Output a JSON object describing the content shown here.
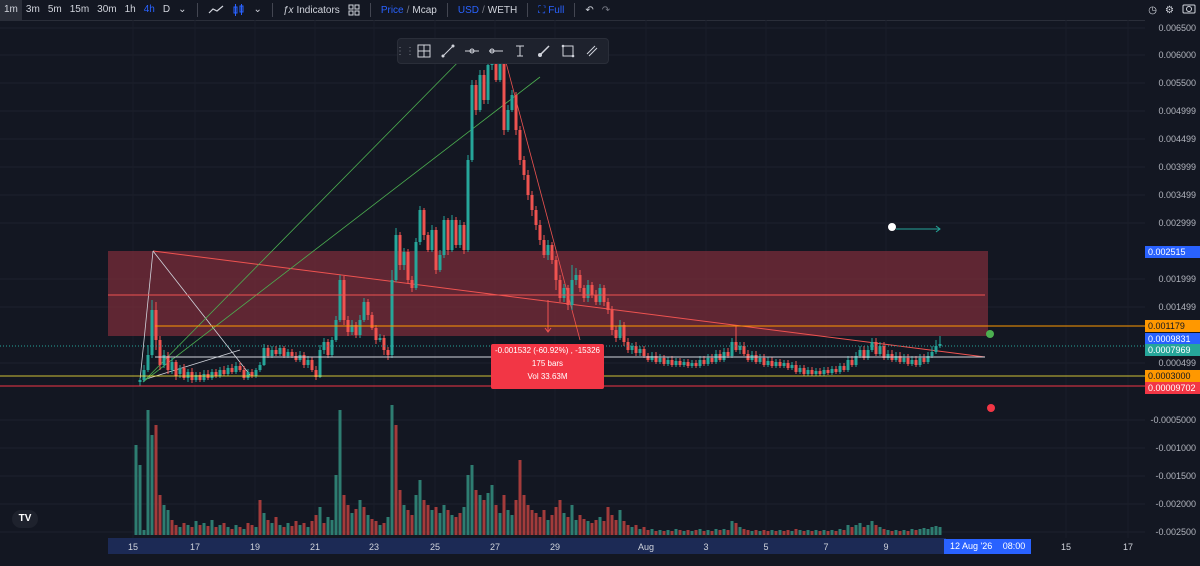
{
  "toolbar": {
    "timeframes": [
      "1m",
      "3m",
      "5m",
      "15m",
      "30m",
      "1h",
      "4h",
      "D"
    ],
    "active_timeframe": "4h",
    "indicators_label": "Indicators",
    "price_label": "Price",
    "mcap_label": "Mcap",
    "slash": "/",
    "currency_label": "USD",
    "pair_label": "WETH",
    "full_label": "Full"
  },
  "price_axis": {
    "labels": [
      "0.006500",
      "0.006000",
      "0.005500",
      "0.004999",
      "0.004499",
      "0.003999",
      "0.003499",
      "0.002999",
      "0.001999",
      "0.001499",
      "0.000499",
      "-0.0005000",
      "-0.001000",
      "-0.001500",
      "-0.002000",
      "-0.002500"
    ]
  },
  "price_tags": {
    "blue_tag": "0.002515",
    "orange_tag": "0.001179",
    "current_price": "0.0009831",
    "green_tag": "0.0007969",
    "yellow_tag": "0.0003000",
    "red_tag": "0.00009702"
  },
  "time_axis": {
    "labels": [
      "15",
      "17",
      "19",
      "21",
      "23",
      "25",
      "27",
      "29",
      "Aug",
      "3",
      "5",
      "7",
      "9",
      "15",
      "17"
    ],
    "cursor_label": "12 Aug '26",
    "cursor_time": "08:00"
  },
  "measure_tooltip": {
    "line1": "-0.001532 (-60.92%) , -15326",
    "line2": "175 bars",
    "line3": "Vol 33.63M"
  },
  "logo": "TV",
  "colors": {
    "background": "#131722",
    "up": "#26a69a",
    "down": "#ef5350",
    "accent_blue": "#2962ff",
    "orange": "#ff9800",
    "zone": "#7a2c3a"
  }
}
